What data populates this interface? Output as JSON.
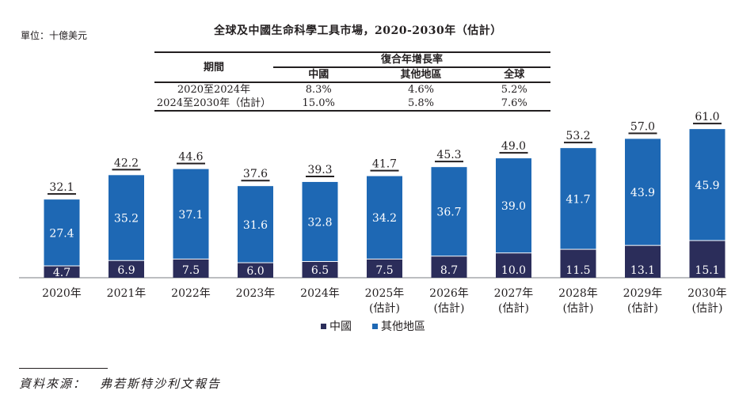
{
  "unit_label": "單位：十億美元",
  "title": "全球及中國生命科學工具市場，2020-2030年（估計）",
  "cagr_table": {
    "period_header": "期間",
    "group_header": "復合年增長率",
    "columns": [
      "中國",
      "其他地區",
      "全球"
    ],
    "rows": [
      {
        "period": "2020至2024年",
        "values": [
          "8.3%",
          "4.6%",
          "5.2%"
        ]
      },
      {
        "period": "2024至2030年（估計）",
        "values": [
          "15.0%",
          "5.8%",
          "7.6%"
        ]
      }
    ]
  },
  "colors": {
    "china": "#2b2d5a",
    "rest_of_world": "#1e68b4",
    "axis": "#a6a8ab",
    "text": "#231f20"
  },
  "chart_data": {
    "type": "bar",
    "stacked": true,
    "title": "全球及中國生命科學工具市場，2020-2030年（估計）",
    "ylabel": "單位：十億美元",
    "xlabel": "",
    "categories": [
      [
        "2020年"
      ],
      [
        "2021年"
      ],
      [
        "2022年"
      ],
      [
        "2023年"
      ],
      [
        "2024年"
      ],
      [
        "2025年",
        "(估計)"
      ],
      [
        "2026年",
        "(估計)"
      ],
      [
        "2027年",
        "(估計)"
      ],
      [
        "2028年",
        "(估計)"
      ],
      [
        "2029年",
        "(估計)"
      ],
      [
        "2030年",
        "(估計)"
      ]
    ],
    "series": [
      {
        "name": "中國",
        "key": "china",
        "values": [
          4.7,
          6.9,
          7.5,
          6.0,
          6.5,
          7.5,
          8.7,
          10.0,
          11.5,
          13.1,
          15.1
        ]
      },
      {
        "name": "其他地區",
        "key": "rest_of_world",
        "values": [
          27.4,
          35.2,
          37.1,
          31.6,
          32.8,
          34.2,
          36.7,
          39.0,
          41.7,
          43.9,
          45.9
        ]
      }
    ],
    "totals": [
      "32.1",
      "42.2",
      "44.6",
      "37.6",
      "39.3",
      "41.7",
      "45.3",
      "49.0",
      "53.2",
      "57.0",
      "61.0"
    ],
    "ylim": [
      0,
      65
    ],
    "grid": false,
    "legend": {
      "position": "bottom-center",
      "entries": [
        "中國",
        "其他地區"
      ]
    }
  },
  "source": "資料來源：　弗若斯特沙利文報告"
}
